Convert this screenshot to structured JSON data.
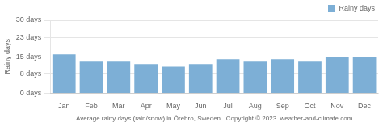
{
  "chart_data": {
    "type": "bar",
    "categories": [
      "Jan",
      "Feb",
      "Mar",
      "Apr",
      "May",
      "Jun",
      "Jul",
      "Aug",
      "Sep",
      "Oct",
      "Nov",
      "Dec"
    ],
    "series": [
      {
        "name": "Rainy days",
        "color": "#7dafd6",
        "values": [
          16,
          13,
          13,
          12,
          11,
          12,
          14,
          13,
          14,
          13,
          15,
          15
        ]
      }
    ],
    "xlabel": "Average rainy days (rain/snow) in Örebro, Sweden   Copyright © 2023  weather-and-climate.com",
    "ylabel": "Rainy days",
    "ylim": [
      0,
      30
    ],
    "yticks": [
      {
        "value": 0,
        "label": "0 days"
      },
      {
        "value": 8,
        "label": "8 days"
      },
      {
        "value": 15,
        "label": "15 days"
      },
      {
        "value": 23,
        "label": "23 days"
      },
      {
        "value": 30,
        "label": "30 days"
      }
    ],
    "grid": true,
    "legend": "upper right"
  }
}
